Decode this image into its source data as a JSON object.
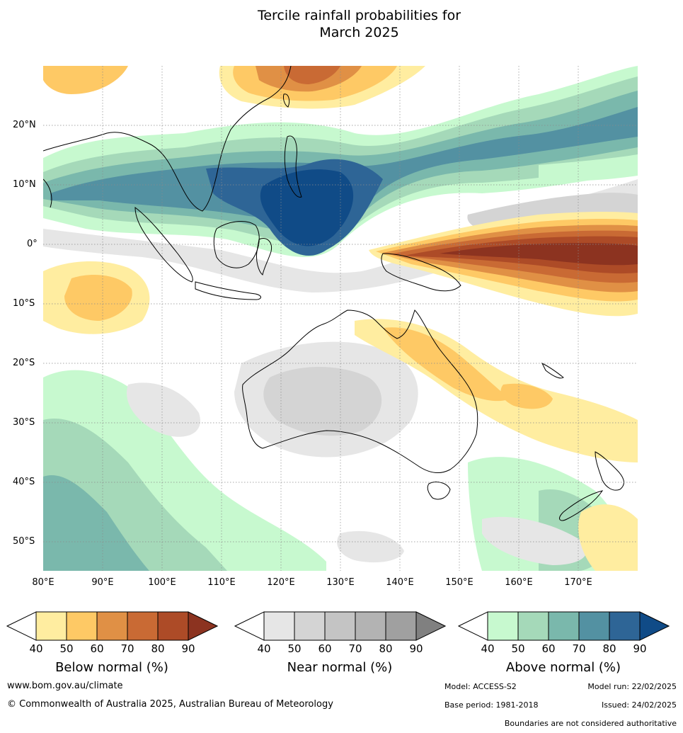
{
  "title_line1": "Tercile rainfall probabilities for",
  "title_line2": "March 2025",
  "lat_labels": [
    "20°N",
    "10°N",
    "0°",
    "10°S",
    "20°S",
    "30°S",
    "40°S",
    "50°S"
  ],
  "lon_labels": [
    "80°E",
    "90°E",
    "100°E",
    "110°E",
    "120°E",
    "130°E",
    "140°E",
    "150°E",
    "160°E",
    "170°E"
  ],
  "legends": [
    {
      "title": "Below normal (%)",
      "ticks": [
        "40",
        "50",
        "60",
        "70",
        "80",
        "90"
      ],
      "colors": [
        "#ffffff",
        "#ffeda0",
        "#fec965",
        "#e09045",
        "#c96a34",
        "#ad4b27",
        "#8c3320"
      ]
    },
    {
      "title": "Near normal (%)",
      "ticks": [
        "40",
        "50",
        "60",
        "70",
        "80",
        "90"
      ],
      "colors": [
        "#ffffff",
        "#e6e6e6",
        "#d4d4d4",
        "#c4c4c4",
        "#b3b3b3",
        "#a0a0a0",
        "#808080"
      ]
    },
    {
      "title": "Above normal (%)",
      "ticks": [
        "40",
        "50",
        "60",
        "70",
        "80",
        "90"
      ],
      "colors": [
        "#ffffff",
        "#c7f9cf",
        "#a5d9b9",
        "#7ab8ac",
        "#5391a2",
        "#2e6596",
        "#104b87"
      ]
    }
  ],
  "footer": {
    "website": "www.bom.gov.au/climate",
    "copyright": "© Commonwealth of Australia 2025, Australian Bureau of Meteorology",
    "model": "Model: ACCESS-S2",
    "model_run": "Model run: 22/02/2025",
    "base_period": "Base period: 1981-2018",
    "issued": "Issued: 24/02/2025",
    "disclaimer": "Boundaries are not considered authoritative"
  }
}
